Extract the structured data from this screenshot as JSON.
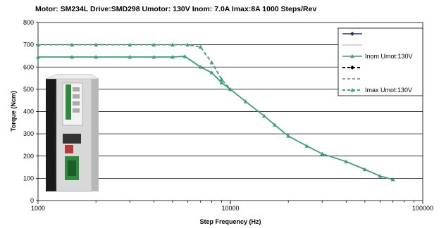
{
  "chart_data": {
    "type": "line",
    "title": "Motor: SM234L   Drive:SMD298   Umotor: 130V     Inom: 7.0A    Imax:8A    1000 Steps/Rev",
    "xlabel": "Step Frequency (Hz)",
    "ylabel": "Torque (Ncm)",
    "x_scale": "log",
    "xlim": [
      1000,
      100000
    ],
    "ylim": [
      0,
      800
    ],
    "x_ticks": [
      1000,
      10000,
      100000
    ],
    "x_tick_labels": [
      "1000",
      "10000",
      "100000"
    ],
    "y_ticks": [
      0,
      100,
      200,
      300,
      400,
      500,
      600,
      700,
      800
    ],
    "y_tick_labels": [
      "0",
      "100",
      "200",
      "300",
      "400",
      "500",
      "600",
      "700",
      "800"
    ],
    "grid": "horizontal",
    "legend_position": "right",
    "series": [
      {
        "name": "",
        "color": "#1f2f7a",
        "line_style": "solid",
        "marker": "diamond",
        "points": []
      },
      {
        "name": "",
        "color": "#c8c8c8",
        "line_style": "solid",
        "marker": "none",
        "points": []
      },
      {
        "name": "Inom Umot:130V",
        "color": "#3d9f73",
        "line_style": "solid",
        "marker": "triangle",
        "points": [
          [
            1000,
            645
          ],
          [
            1500,
            645
          ],
          [
            2000,
            645
          ],
          [
            3000,
            645
          ],
          [
            4000,
            645
          ],
          [
            5000,
            645
          ],
          [
            5800,
            648
          ],
          [
            7000,
            600
          ],
          [
            8000,
            575
          ],
          [
            9000,
            530
          ],
          [
            10000,
            500
          ],
          [
            12000,
            445
          ],
          [
            15000,
            380
          ],
          [
            17000,
            340
          ],
          [
            20000,
            290
          ],
          [
            25000,
            245
          ],
          [
            30000,
            210
          ],
          [
            40000,
            175
          ],
          [
            50000,
            140
          ],
          [
            60000,
            110
          ],
          [
            70000,
            95
          ]
        ]
      },
      {
        "name": "",
        "color": "#000000",
        "line_style": "dashed",
        "marker": "diamond",
        "points": []
      },
      {
        "name": "",
        "color": "#999999",
        "line_style": "dashed",
        "marker": "none",
        "points": []
      },
      {
        "name": "Imax Umot:130V",
        "color": "#3d9f73",
        "line_style": "dashed",
        "marker": "triangle",
        "points": [
          [
            1000,
            700
          ],
          [
            1500,
            700
          ],
          [
            2000,
            700
          ],
          [
            3000,
            700
          ],
          [
            4000,
            700
          ],
          [
            5000,
            700
          ],
          [
            6000,
            700
          ],
          [
            7000,
            690
          ],
          [
            8000,
            620
          ],
          [
            9000,
            545
          ],
          [
            10000,
            500
          ]
        ]
      }
    ],
    "legend_swatches": {
      "blue_diamond": "#1f2f7a",
      "grey_line": "#c8c8c8",
      "green_triangle": "#3d9f73",
      "black_dashed": "#000000",
      "grey_dashed": "#999999"
    },
    "inset_image": "stepper-drive-photo"
  }
}
